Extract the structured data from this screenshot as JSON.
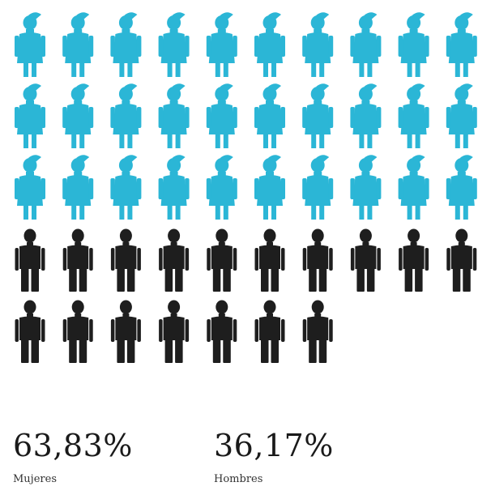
{
  "chart_data": {
    "type": "pictogram",
    "units_per_row": 10,
    "series": [
      {
        "name": "Mujeres",
        "count": 30,
        "percent": 63.83,
        "label": "63,83%",
        "color": "#2bb6d6"
      },
      {
        "name": "Hombres",
        "count": 17,
        "percent": 36.17,
        "label": "36,17%",
        "color": "#1e1e1e"
      }
    ]
  },
  "legend": {
    "women": {
      "value": "63,83%",
      "label": "Mujeres"
    },
    "men": {
      "value": "36,17%",
      "label": "Hombres"
    }
  }
}
